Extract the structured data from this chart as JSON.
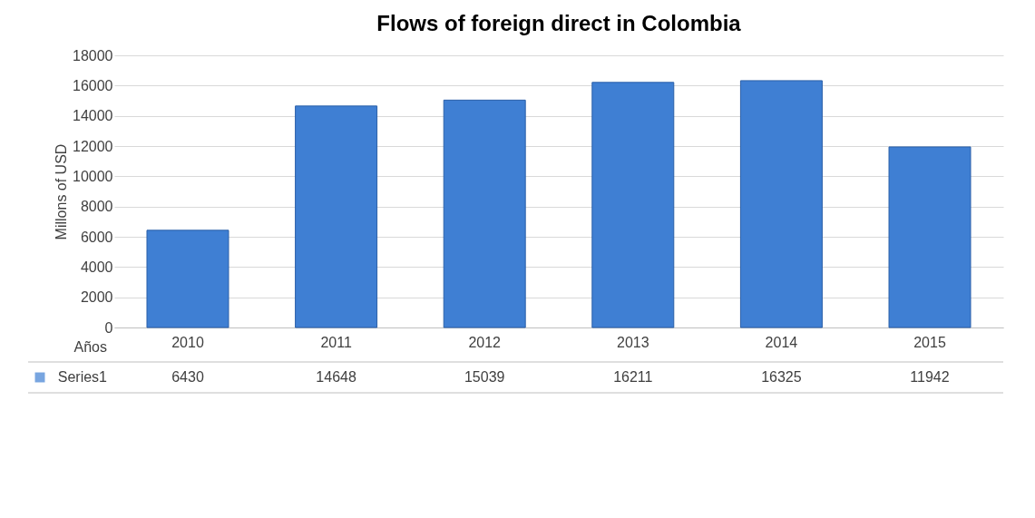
{
  "chart_data": {
    "type": "bar",
    "title": "Flows of foreign direct in Colombia",
    "xlabel": "Años",
    "ylabel": "Millons of USD",
    "categories": [
      "2010",
      "2011",
      "2012",
      "2013",
      "2014",
      "2015"
    ],
    "series": [
      {
        "name": "Series1",
        "color": "#3f7fd3",
        "values": [
          6430,
          14648,
          15039,
          16211,
          16325,
          11942
        ]
      }
    ],
    "ylim": [
      0,
      18000
    ],
    "yticks": [
      0,
      2000,
      4000,
      6000,
      8000,
      10000,
      12000,
      14000,
      16000,
      18000
    ],
    "grid": "y",
    "data_labels": true
  }
}
